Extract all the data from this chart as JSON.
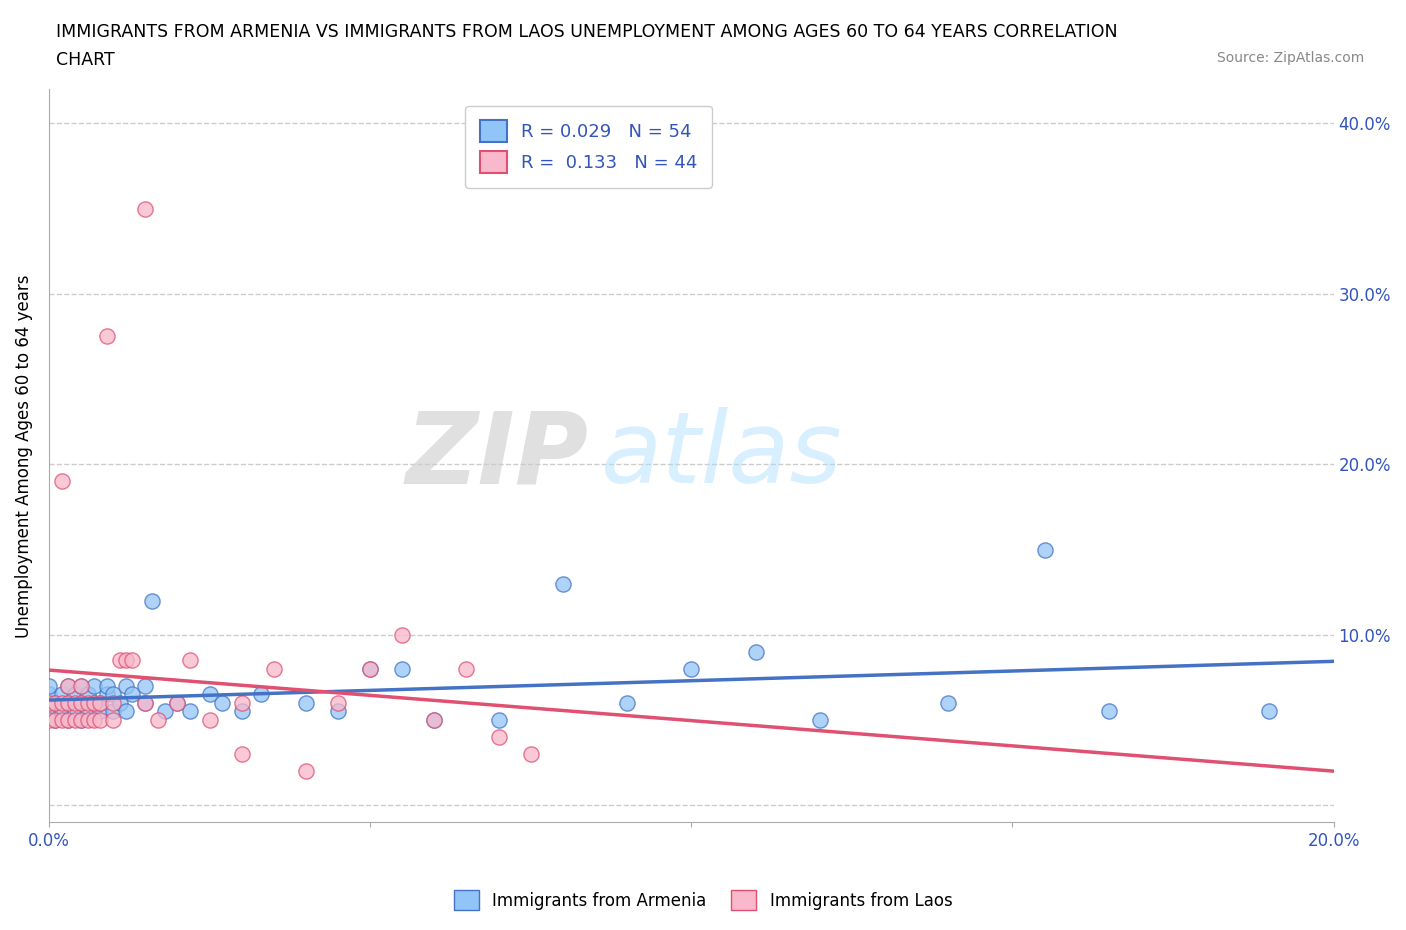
{
  "title_line1": "IMMIGRANTS FROM ARMENIA VS IMMIGRANTS FROM LAOS UNEMPLOYMENT AMONG AGES 60 TO 64 YEARS CORRELATION",
  "title_line2": "CHART",
  "source": "Source: ZipAtlas.com",
  "ylabel": "Unemployment Among Ages 60 to 64 years",
  "xlim": [
    0.0,
    0.2
  ],
  "ylim": [
    -0.01,
    0.42
  ],
  "xticks": [
    0.0,
    0.05,
    0.1,
    0.15,
    0.2
  ],
  "yticks": [
    0.0,
    0.1,
    0.2,
    0.3,
    0.4
  ],
  "xtick_labels_show": [
    "0.0%",
    "20.0%"
  ],
  "ytick_labels": [
    "",
    "10.0%",
    "20.0%",
    "30.0%",
    "40.0%"
  ],
  "legend_r1": "R = 0.029   N = 54",
  "legend_r2": "R =  0.133   N = 44",
  "color_armenia": "#92C5F7",
  "color_laos": "#F9B8CB",
  "trendline_armenia_color": "#4472C4",
  "trendline_laos_color": "#E05070",
  "watermark": "ZIPatlas",
  "armenia_x": [
    0.0,
    0.0,
    0.0,
    0.001,
    0.001,
    0.002,
    0.002,
    0.003,
    0.003,
    0.003,
    0.004,
    0.004,
    0.005,
    0.005,
    0.005,
    0.006,
    0.006,
    0.007,
    0.007,
    0.008,
    0.008,
    0.009,
    0.009,
    0.01,
    0.01,
    0.011,
    0.012,
    0.012,
    0.013,
    0.015,
    0.015,
    0.016,
    0.018,
    0.02,
    0.022,
    0.025,
    0.027,
    0.03,
    0.033,
    0.04,
    0.045,
    0.05,
    0.055,
    0.06,
    0.07,
    0.08,
    0.09,
    0.1,
    0.11,
    0.12,
    0.14,
    0.155,
    0.165,
    0.19
  ],
  "armenia_y": [
    0.055,
    0.065,
    0.07,
    0.05,
    0.06,
    0.055,
    0.065,
    0.05,
    0.06,
    0.07,
    0.055,
    0.065,
    0.05,
    0.06,
    0.07,
    0.055,
    0.065,
    0.06,
    0.07,
    0.055,
    0.06,
    0.065,
    0.07,
    0.055,
    0.065,
    0.06,
    0.07,
    0.055,
    0.065,
    0.06,
    0.07,
    0.12,
    0.055,
    0.06,
    0.055,
    0.065,
    0.06,
    0.055,
    0.065,
    0.06,
    0.055,
    0.08,
    0.08,
    0.05,
    0.05,
    0.13,
    0.06,
    0.08,
    0.09,
    0.05,
    0.06,
    0.15,
    0.055,
    0.055
  ],
  "laos_x": [
    0.0,
    0.0,
    0.001,
    0.001,
    0.002,
    0.002,
    0.002,
    0.003,
    0.003,
    0.003,
    0.004,
    0.004,
    0.005,
    0.005,
    0.005,
    0.006,
    0.006,
    0.007,
    0.007,
    0.008,
    0.008,
    0.009,
    0.01,
    0.01,
    0.011,
    0.012,
    0.013,
    0.015,
    0.015,
    0.017,
    0.02,
    0.022,
    0.025,
    0.03,
    0.03,
    0.035,
    0.04,
    0.045,
    0.05,
    0.055,
    0.06,
    0.065,
    0.07,
    0.075
  ],
  "laos_y": [
    0.05,
    0.06,
    0.05,
    0.06,
    0.05,
    0.06,
    0.19,
    0.05,
    0.06,
    0.07,
    0.05,
    0.06,
    0.05,
    0.06,
    0.07,
    0.05,
    0.06,
    0.05,
    0.06,
    0.05,
    0.06,
    0.275,
    0.05,
    0.06,
    0.085,
    0.085,
    0.085,
    0.35,
    0.06,
    0.05,
    0.06,
    0.085,
    0.05,
    0.03,
    0.06,
    0.08,
    0.02,
    0.06,
    0.08,
    0.1,
    0.05,
    0.08,
    0.04,
    0.03
  ]
}
